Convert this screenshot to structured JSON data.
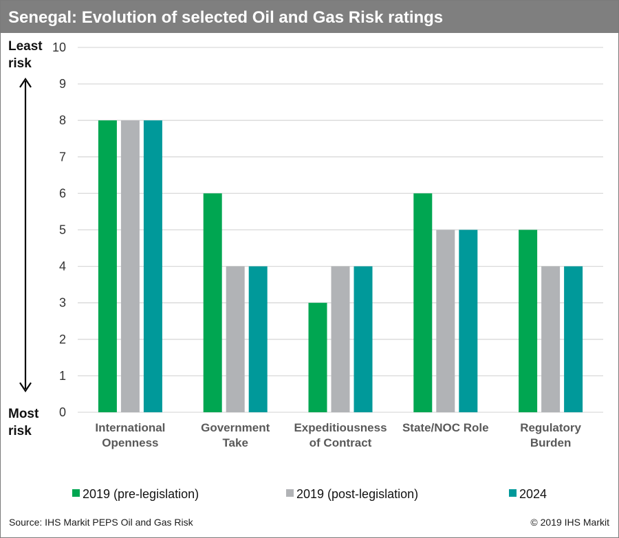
{
  "header": {
    "title": "Senegal: Evolution of selected Oil and Gas Risk ratings"
  },
  "axis_annotation": {
    "top": [
      "Least",
      "risk"
    ],
    "bottom": [
      "Most",
      "risk"
    ]
  },
  "footer": {
    "source": "Source: IHS Markit PEPS Oil and Gas Risk",
    "copyright": "© 2019 IHS Markit"
  },
  "chart_data": {
    "type": "bar",
    "title": "Senegal: Evolution of selected Oil and Gas Risk ratings",
    "categories": [
      [
        "International",
        "Openness"
      ],
      [
        "Government",
        "Take"
      ],
      [
        "Expeditiousness",
        "of Contract"
      ],
      [
        "State/NOC Role"
      ],
      [
        "Regulatory",
        "Burden"
      ]
    ],
    "series": [
      {
        "name": "2019 (pre-legislation)",
        "color": "#00a651",
        "values": [
          8,
          6,
          3,
          6,
          5
        ]
      },
      {
        "name": "2019 (post-legislation)",
        "color": "#b1b3b6",
        "values": [
          8,
          4,
          4,
          5,
          4
        ]
      },
      {
        "name": "2024",
        "color": "#00999a",
        "values": [
          8,
          4,
          4,
          5,
          4
        ]
      }
    ],
    "ylim": [
      0,
      10
    ],
    "yticks": [
      0,
      1,
      2,
      3,
      4,
      5,
      6,
      7,
      8,
      9,
      10
    ],
    "grid": true,
    "legend_position": "bottom"
  }
}
